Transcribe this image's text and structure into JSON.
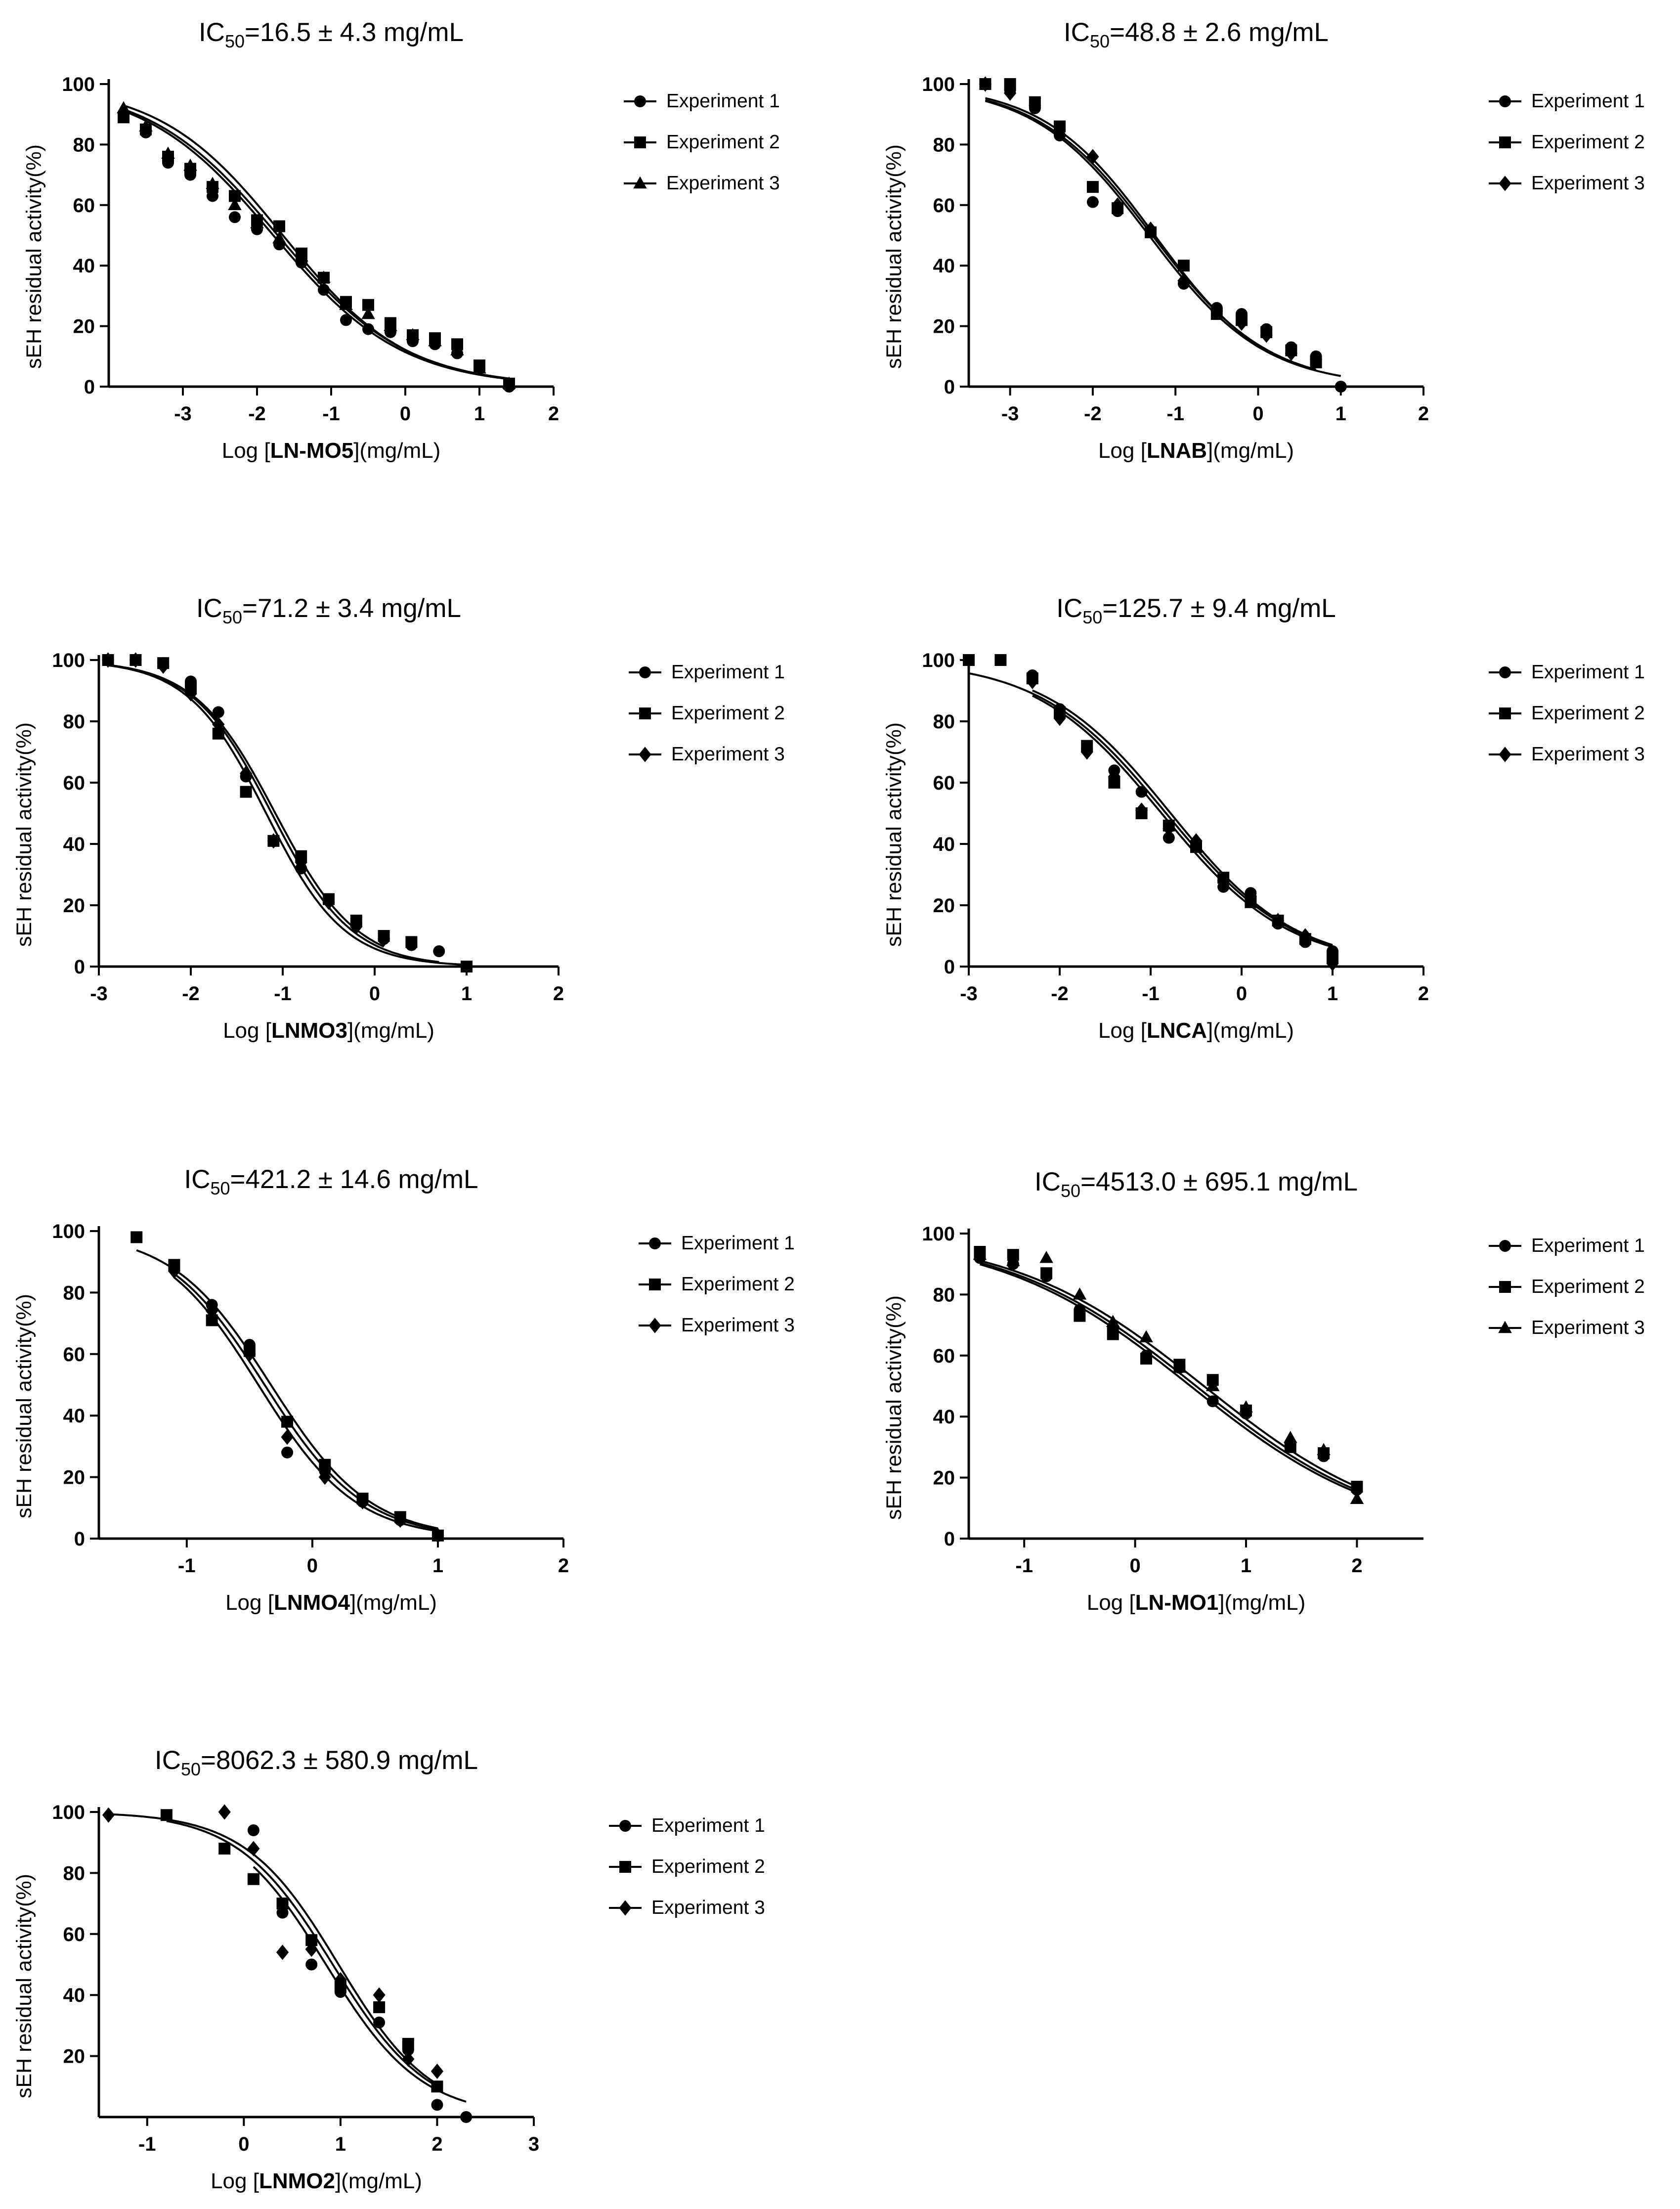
{
  "chart_data": [
    {
      "type": "line",
      "title_prefix": "IC",
      "title_sub": "50",
      "title_value": "=16.5 ± 4.3 mg/mL",
      "xlabel_pre": "Log [",
      "xlabel_bold": "LN-MO5",
      "xlabel_post": "](mg/mL)",
      "ylabel": "sEH residual activity(%)",
      "xlim": [
        -4.0,
        2.0
      ],
      "ylim": [
        0,
        100
      ],
      "xticks": [
        -3,
        -2,
        -1,
        0,
        1,
        2
      ],
      "yticks": [
        0,
        20,
        40,
        60,
        80,
        100
      ],
      "legend_position": "right",
      "series": [
        {
          "name": "Experiment 1",
          "marker": "circle",
          "x": [
            -3.8,
            -3.5,
            -3.2,
            -2.9,
            -2.6,
            -2.3,
            -2.0,
            -1.7,
            -1.4,
            -1.1,
            -0.8,
            -0.5,
            -0.2,
            0.1,
            0.4,
            0.7,
            1.0,
            1.4
          ],
          "y": [
            90,
            84,
            74,
            70,
            63,
            56,
            52,
            47,
            41,
            32,
            22,
            19,
            18,
            15,
            14,
            11,
            6,
            0
          ],
          "curve": {
            "top": 100,
            "bottom": 0,
            "logIC50": -1.78,
            "hill": 0.5
          }
        },
        {
          "name": "Experiment 2",
          "marker": "square",
          "x": [
            -3.8,
            -3.5,
            -3.2,
            -2.9,
            -2.6,
            -2.3,
            -2.0,
            -1.7,
            -1.4,
            -1.1,
            -0.8,
            -0.5,
            -0.2,
            0.1,
            0.4,
            0.7,
            1.0,
            1.4
          ],
          "y": [
            89,
            85,
            76,
            72,
            66,
            63,
            55,
            53,
            44,
            36,
            28,
            27,
            21,
            17,
            16,
            14,
            7,
            1
          ],
          "curve": {
            "top": 100,
            "bottom": 0,
            "logIC50": -1.72,
            "hill": 0.5
          }
        },
        {
          "name": "Experiment 3",
          "marker": "triangle",
          "x": [
            -3.8,
            -3.5,
            -3.2,
            -2.9,
            -2.6,
            -2.3,
            -2.0,
            -1.7,
            -1.4,
            -1.1,
            -0.8,
            -0.5,
            -0.2,
            0.1,
            0.4,
            0.7,
            1.0,
            1.4
          ],
          "y": [
            92,
            86,
            77,
            73,
            67,
            60,
            54,
            49,
            43,
            36,
            27,
            24,
            20,
            17,
            15,
            12,
            6,
            1
          ],
          "curve": {
            "top": 100,
            "bottom": 0,
            "logIC50": -1.65,
            "hill": 0.52
          }
        }
      ]
    },
    {
      "type": "line",
      "title_prefix": "IC",
      "title_sub": "50",
      "title_value": "=48.8 ± 2.6 mg/mL",
      "xlabel_pre": "Log [",
      "xlabel_bold": "LNAB",
      "xlabel_post": "](mg/mL)",
      "ylabel": "sEH residual activity(%)",
      "xlim": [
        -3.5,
        2.0
      ],
      "ylim": [
        0,
        100
      ],
      "xticks": [
        -3,
        -2,
        -1,
        0,
        1,
        2
      ],
      "yticks": [
        0,
        20,
        40,
        60,
        80,
        100
      ],
      "legend_position": "right",
      "series": [
        {
          "name": "Experiment 1",
          "marker": "circle",
          "x": [
            -3.3,
            -3.0,
            -2.7,
            -2.4,
            -2.0,
            -1.7,
            -1.3,
            -0.9,
            -0.5,
            -0.2,
            0.1,
            0.4,
            0.7,
            1.0
          ],
          "y": [
            100,
            98,
            92,
            83,
            61,
            58,
            51,
            34,
            26,
            24,
            19,
            13,
            10,
            0
          ],
          "curve": {
            "top": 100,
            "bottom": 0,
            "logIC50": -1.32,
            "hill": 0.62
          }
        },
        {
          "name": "Experiment 2",
          "marker": "square",
          "x": [
            -3.3,
            -3.0,
            -2.7,
            -2.4,
            -2.0,
            -1.7,
            -1.3,
            -0.9,
            -0.5,
            -0.2,
            0.1,
            0.4,
            0.7
          ],
          "y": [
            100,
            100,
            94,
            86,
            66,
            59,
            51,
            40,
            24,
            22,
            18,
            12,
            8
          ],
          "curve": {
            "top": 100,
            "bottom": 0,
            "logIC50": -1.28,
            "hill": 0.62
          }
        },
        {
          "name": "Experiment 3",
          "marker": "diamond",
          "x": [
            -3.3,
            -3.0,
            -2.7,
            -2.4,
            -2.0,
            -1.7,
            -1.3,
            -0.9,
            -0.5,
            -0.2,
            0.1,
            0.4,
            0.7
          ],
          "y": [
            100,
            97,
            93,
            85,
            76,
            60,
            52,
            35,
            25,
            21,
            17,
            11,
            9
          ],
          "curve": {
            "top": 100,
            "bottom": 0,
            "logIC50": -1.25,
            "hill": 0.64
          }
        }
      ]
    },
    {
      "type": "line",
      "title_prefix": "IC",
      "title_sub": "50",
      "title_value": "=71.2 ± 3.4 mg/mL",
      "xlabel_pre": "Log [",
      "xlabel_bold": "LNMO3",
      "xlabel_post": "](mg/mL)",
      "ylabel": "sEH residual activity(%)",
      "xlim": [
        -3.0,
        2.0
      ],
      "ylim": [
        0,
        100
      ],
      "xticks": [
        -3,
        -2,
        -1,
        0,
        1,
        2
      ],
      "yticks": [
        0,
        20,
        40,
        60,
        80,
        100
      ],
      "legend_position": "right",
      "series": [
        {
          "name": "Experiment 1",
          "marker": "circle",
          "x": [
            -2.9,
            -2.6,
            -2.3,
            -2.0,
            -1.7,
            -1.4,
            -1.1,
            -0.8,
            -0.5,
            -0.2,
            0.1,
            0.4,
            0.7
          ],
          "y": [
            100,
            100,
            99,
            93,
            83,
            62,
            41,
            32,
            22,
            14,
            9,
            7,
            5
          ],
          "curve": {
            "top": 100,
            "bottom": 0,
            "logIC50": -1.12,
            "hill": 1.0
          }
        },
        {
          "name": "Experiment 2",
          "marker": "square",
          "x": [
            -2.9,
            -2.6,
            -2.3,
            -2.0,
            -1.7,
            -1.4,
            -1.1,
            -0.8,
            -0.5,
            -0.2,
            0.1,
            0.4,
            1.0
          ],
          "y": [
            100,
            100,
            99,
            91,
            76,
            57,
            41,
            36,
            22,
            15,
            10,
            8,
            0
          ],
          "curve": {
            "top": 100,
            "bottom": 0,
            "logIC50": -1.18,
            "hill": 1.02
          }
        },
        {
          "name": "Experiment 3",
          "marker": "diamond",
          "x": [
            -2.9,
            -2.6,
            -2.3,
            -2.0,
            -1.7,
            -1.4,
            -1.1,
            -0.8,
            -0.5,
            -0.2,
            0.1
          ],
          "y": [
            100,
            100,
            98,
            89,
            79,
            63,
            41,
            34,
            21,
            13,
            9
          ],
          "curve": {
            "top": 100,
            "bottom": 0,
            "logIC50": -1.08,
            "hill": 0.98
          }
        }
      ]
    },
    {
      "type": "line",
      "title_prefix": "IC",
      "title_sub": "50",
      "title_value": "=125.7 ± 9.4 mg/mL",
      "xlabel_pre": "Log [",
      "xlabel_bold": "LNCA",
      "xlabel_post": "](mg/mL)",
      "ylabel": "sEH residual activity(%)",
      "xlim": [
        -3.0,
        2.0
      ],
      "ylim": [
        0,
        100
      ],
      "xticks": [
        -3,
        -2,
        -1,
        0,
        1,
        2
      ],
      "yticks": [
        0,
        20,
        40,
        60,
        80,
        100
      ],
      "legend_position": "right",
      "series": [
        {
          "name": "Experiment 1",
          "marker": "circle",
          "x": [
            -2.3,
            -2.0,
            -1.7,
            -1.4,
            -1.1,
            -0.8,
            -0.5,
            -0.2,
            0.1,
            0.4,
            0.7,
            1.0
          ],
          "y": [
            95,
            84,
            71,
            64,
            57,
            42,
            40,
            26,
            24,
            14,
            8,
            5
          ],
          "curve": {
            "top": 100,
            "bottom": 0,
            "logIC50": -0.88,
            "hill": 0.62
          }
        },
        {
          "name": "Experiment 2",
          "marker": "square",
          "x": [
            -3.0,
            -2.65,
            -2.3,
            -2.0,
            -1.7,
            -1.4,
            -1.1,
            -0.8,
            -0.5,
            -0.2,
            0.1,
            0.4,
            0.7,
            1.0
          ],
          "y": [
            100,
            100,
            94,
            83,
            72,
            60,
            50,
            46,
            39,
            29,
            21,
            15,
            9,
            3
          ],
          "curve": {
            "top": 100,
            "bottom": 0,
            "logIC50": -0.83,
            "hill": 0.62
          }
        },
        {
          "name": "Experiment 3",
          "marker": "diamond",
          "x": [
            -2.3,
            -2.0,
            -1.7,
            -1.4,
            -1.1,
            -0.8,
            -0.5,
            -0.2,
            0.1,
            0.4,
            0.7,
            1.0
          ],
          "y": [
            93,
            81,
            70,
            62,
            51,
            45,
            41,
            28,
            23,
            15,
            10,
            1
          ],
          "curve": {
            "top": 100,
            "bottom": 0,
            "logIC50": -0.78,
            "hill": 0.63
          }
        }
      ]
    },
    {
      "type": "line",
      "title_prefix": "IC",
      "title_sub": "50",
      "title_value": "=421.2 ± 14.6 mg/mL",
      "xlabel_pre": "Log [",
      "xlabel_bold": "LNMO4",
      "xlabel_post": "](mg/mL)",
      "ylabel": "sEH residual activity(%)",
      "xlim": [
        -1.7,
        2.0
      ],
      "ylim": [
        0,
        100
      ],
      "xticks": [
        -1,
        0,
        1,
        2
      ],
      "yticks": [
        0,
        20,
        40,
        60,
        80,
        100
      ],
      "legend_position": "right",
      "series": [
        {
          "name": "Experiment 1",
          "marker": "circle",
          "x": [
            -1.1,
            -0.8,
            -0.5,
            -0.2,
            0.1,
            0.4,
            0.7,
            1.0
          ],
          "y": [
            88,
            76,
            63,
            28,
            22,
            12,
            6,
            1
          ],
          "curve": {
            "top": 100,
            "bottom": 0,
            "logIC50": -0.38,
            "hill": 1.1
          }
        },
        {
          "name": "Experiment 2",
          "marker": "square",
          "x": [
            -1.4,
            -1.1,
            -0.8,
            -0.5,
            -0.2,
            0.1,
            0.4,
            0.7,
            1.0
          ],
          "y": [
            98,
            89,
            71,
            61,
            38,
            24,
            13,
            7,
            1
          ],
          "curve": {
            "top": 100,
            "bottom": 0,
            "logIC50": -0.33,
            "hill": 1.1
          }
        },
        {
          "name": "Experiment 3",
          "marker": "diamond",
          "x": [
            -1.1,
            -0.8,
            -0.5,
            -0.2,
            0.1,
            0.4,
            0.7,
            1.0
          ],
          "y": [
            87,
            74,
            60,
            33,
            20,
            12,
            6,
            1
          ],
          "curve": {
            "top": 100,
            "bottom": 0,
            "logIC50": -0.43,
            "hill": 1.12
          }
        }
      ]
    },
    {
      "type": "line",
      "title_prefix": "IC",
      "title_sub": "50",
      "title_value": "=4513.0 ± 695.1 mg/mL",
      "xlabel_pre": "Log [",
      "xlabel_bold": "LN-MO1",
      "xlabel_post": "](mg/mL)",
      "ylabel": "sEH residual activity(%)",
      "xlim": [
        -1.5,
        2.6
      ],
      "ylim": [
        0,
        100
      ],
      "xticks": [
        -1,
        0,
        1,
        2
      ],
      "yticks": [
        0,
        20,
        40,
        60,
        80,
        100
      ],
      "legend_position": "right",
      "series": [
        {
          "name": "Experiment 1",
          "marker": "circle",
          "x": [
            -1.4,
            -1.1,
            -0.8,
            -0.5,
            -0.2,
            0.1,
            0.4,
            0.7,
            1.0,
            1.4,
            1.7,
            2.0
          ],
          "y": [
            92,
            90,
            86,
            75,
            69,
            60,
            56,
            45,
            41,
            31,
            27,
            16
          ],
          "curve": {
            "top": 100,
            "bottom": 0,
            "logIC50": 0.5,
            "hill": 0.5
          }
        },
        {
          "name": "Experiment 2",
          "marker": "square",
          "x": [
            -1.4,
            -1.1,
            -0.8,
            -0.5,
            -0.2,
            0.1,
            0.4,
            0.7,
            1.0,
            1.4,
            1.7,
            2.0
          ],
          "y": [
            94,
            93,
            87,
            73,
            67,
            59,
            57,
            52,
            42,
            30,
            28,
            17
          ],
          "curve": {
            "top": 100,
            "bottom": 0,
            "logIC50": 0.55,
            "hill": 0.5
          }
        },
        {
          "name": "Experiment 3",
          "marker": "triangle",
          "x": [
            -1.4,
            -1.1,
            -0.8,
            -0.5,
            -0.2,
            0.1,
            0.4,
            0.7,
            1.0,
            1.4,
            1.7,
            2.0
          ],
          "y": [
            93,
            91,
            92,
            80,
            71,
            66,
            56,
            50,
            43,
            33,
            29,
            13
          ],
          "curve": {
            "top": 100,
            "bottom": 0,
            "logIC50": 0.62,
            "hill": 0.5
          }
        }
      ]
    },
    {
      "type": "line",
      "title_prefix": "IC",
      "title_sub": "50",
      "title_value": "=8062.3 ± 580.9 mg/mL",
      "xlabel_pre": "Log [",
      "xlabel_bold": "LNMO2",
      "xlabel_post": "](mg/mL)",
      "ylabel": "sEH residual activity(%)",
      "xlim": [
        -1.5,
        3.0
      ],
      "ylim": [
        0,
        100
      ],
      "xticks": [
        -1,
        0,
        1,
        2,
        3
      ],
      "yticks": [
        20,
        40,
        60,
        80,
        100
      ],
      "legend_position": "right",
      "series": [
        {
          "name": "Experiment 1",
          "marker": "circle",
          "x": [
            0.1,
            0.4,
            0.7,
            1.0,
            1.4,
            1.7,
            2.0,
            2.3
          ],
          "y": [
            94,
            67,
            50,
            41,
            31,
            22,
            4,
            0
          ],
          "curve": {
            "top": 100,
            "bottom": 0,
            "logIC50": 0.85,
            "hill": 0.88
          }
        },
        {
          "name": "Experiment 2",
          "marker": "square",
          "x": [
            -0.8,
            -0.2,
            0.1,
            0.4,
            0.7,
            1.0,
            1.4,
            1.7,
            2.0
          ],
          "y": [
            99,
            88,
            78,
            70,
            58,
            43,
            36,
            24,
            10
          ],
          "curve": {
            "top": 100,
            "bottom": 0,
            "logIC50": 0.92,
            "hill": 0.88
          }
        },
        {
          "name": "Experiment 3",
          "marker": "diamond",
          "x": [
            -1.4,
            -0.2,
            0.1,
            0.4,
            0.7,
            1.0,
            1.4,
            1.7,
            2.0
          ],
          "y": [
            99,
            100,
            88,
            54,
            55,
            45,
            40,
            19,
            15
          ],
          "curve": {
            "top": 100,
            "bottom": 0,
            "logIC50": 0.98,
            "hill": 0.9
          }
        }
      ]
    }
  ]
}
